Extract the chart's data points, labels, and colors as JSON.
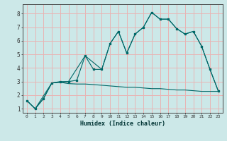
{
  "xlabel": "Humidex (Indice chaleur)",
  "bg_color": "#cce8e8",
  "grid_color": "#e8b4b4",
  "line_color": "#006868",
  "xlim": [
    -0.5,
    23.5
  ],
  "ylim": [
    0.7,
    8.7
  ],
  "x_ticks": [
    0,
    1,
    2,
    3,
    4,
    5,
    6,
    7,
    8,
    9,
    10,
    11,
    12,
    13,
    14,
    15,
    16,
    17,
    18,
    19,
    20,
    21,
    22,
    23
  ],
  "y_ticks": [
    1,
    2,
    3,
    4,
    5,
    6,
    7,
    8
  ],
  "line1_x": [
    0,
    1,
    2,
    3,
    4,
    5,
    6,
    7,
    8,
    9,
    10,
    11,
    12,
    13,
    14,
    15,
    16,
    17,
    18,
    19,
    20,
    21,
    22,
    23
  ],
  "line1_y": [
    1.6,
    1.0,
    1.75,
    2.9,
    3.0,
    3.0,
    3.1,
    4.9,
    3.9,
    3.9,
    5.8,
    6.7,
    5.1,
    6.5,
    7.0,
    8.1,
    7.6,
    7.6,
    6.9,
    6.5,
    6.7,
    5.6,
    3.9,
    2.3
  ],
  "line2_x": [
    0,
    1,
    2,
    3,
    4,
    5,
    6,
    7,
    8,
    9,
    10,
    11,
    12,
    13,
    14,
    15,
    16,
    17,
    18,
    19,
    20,
    21,
    22,
    23
  ],
  "line2_y": [
    1.6,
    1.0,
    1.75,
    2.9,
    2.95,
    2.85,
    2.82,
    2.82,
    2.78,
    2.73,
    2.68,
    2.63,
    2.58,
    2.58,
    2.53,
    2.48,
    2.48,
    2.43,
    2.38,
    2.38,
    2.33,
    2.28,
    2.28,
    2.28
  ],
  "line3_x": [
    0,
    1,
    3,
    5,
    7,
    9,
    10,
    11,
    12,
    13,
    14,
    15,
    16,
    17,
    18,
    19,
    20,
    21,
    22,
    23
  ],
  "line3_y": [
    1.6,
    1.0,
    2.9,
    3.0,
    4.9,
    3.9,
    5.8,
    6.7,
    5.1,
    6.5,
    7.0,
    8.1,
    7.6,
    7.6,
    6.9,
    6.5,
    6.7,
    5.6,
    3.9,
    2.3
  ]
}
